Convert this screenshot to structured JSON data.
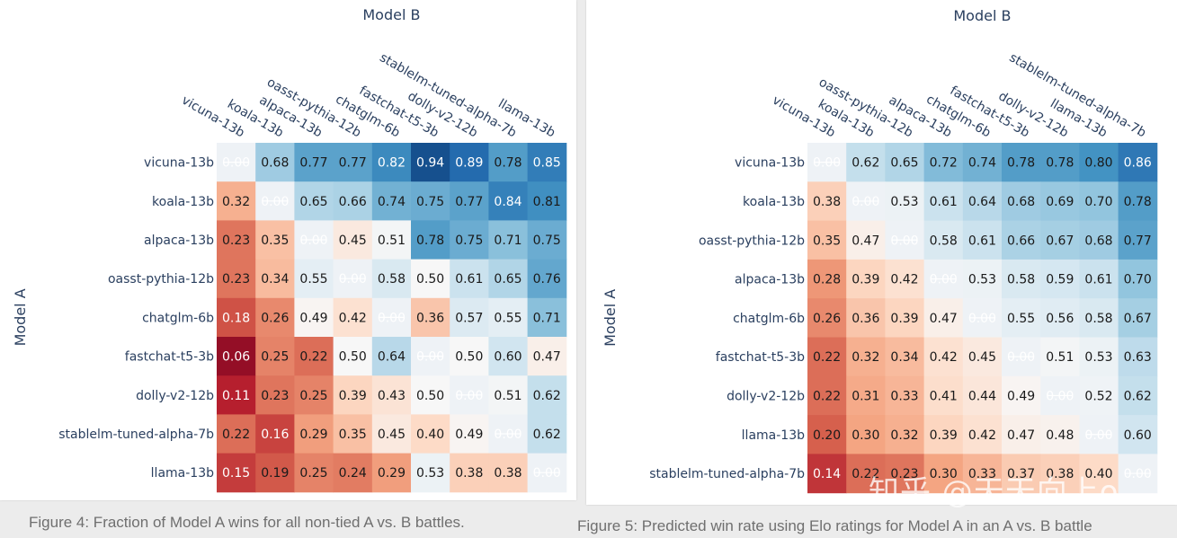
{
  "chart_data": [
    {
      "type": "heatmap",
      "title": "Model B",
      "xlabel": "Model B",
      "ylabel": "Model A",
      "x_categories": [
        "vicuna-13b",
        "koala-13b",
        "alpaca-13b",
        "oasst-pythia-12b",
        "chatglm-6b",
        "fastchat-t5-3b",
        "dolly-v2-12b",
        "stablelm-tuned-alpha-7b",
        "llama-13b"
      ],
      "y_categories": [
        "vicuna-13b",
        "koala-13b",
        "alpaca-13b",
        "oasst-pythia-12b",
        "chatglm-6b",
        "fastchat-t5-3b",
        "dolly-v2-12b",
        "stablelm-tuned-alpha-7b",
        "llama-13b"
      ],
      "values": [
        [
          0.0,
          0.68,
          0.77,
          0.77,
          0.82,
          0.94,
          0.89,
          0.78,
          0.85
        ],
        [
          0.32,
          0.0,
          0.65,
          0.66,
          0.74,
          0.75,
          0.77,
          0.84,
          0.81
        ],
        [
          0.23,
          0.35,
          0.0,
          0.45,
          0.51,
          0.78,
          0.75,
          0.71,
          0.75
        ],
        [
          0.23,
          0.34,
          0.55,
          0.0,
          0.58,
          0.5,
          0.61,
          0.65,
          0.76
        ],
        [
          0.18,
          0.26,
          0.49,
          0.42,
          0.0,
          0.36,
          0.57,
          0.55,
          0.71
        ],
        [
          0.06,
          0.25,
          0.22,
          0.5,
          0.64,
          0.0,
          0.5,
          0.6,
          0.47
        ],
        [
          0.11,
          0.23,
          0.25,
          0.39,
          0.43,
          0.5,
          0.0,
          0.51,
          0.62
        ],
        [
          0.22,
          0.16,
          0.29,
          0.35,
          0.45,
          0.4,
          0.49,
          0.0,
          0.62
        ],
        [
          0.15,
          0.19,
          0.25,
          0.24,
          0.29,
          0.53,
          0.38,
          0.38,
          0.0
        ]
      ],
      "value_format": "0.00",
      "colorscale": "RdBu",
      "caption": "Figure 4: Fraction of Model A wins for all non-tied A vs. B battles."
    },
    {
      "type": "heatmap",
      "title": "Model B",
      "xlabel": "Model B",
      "ylabel": "Model A",
      "x_categories": [
        "vicuna-13b",
        "koala-13b",
        "oasst-pythia-12b",
        "alpaca-13b",
        "chatglm-6b",
        "fastchat-t5-3b",
        "dolly-v2-12b",
        "llama-13b",
        "stablelm-tuned-alpha-7b"
      ],
      "y_categories": [
        "vicuna-13b",
        "koala-13b",
        "oasst-pythia-12b",
        "alpaca-13b",
        "chatglm-6b",
        "fastchat-t5-3b",
        "dolly-v2-12b",
        "llama-13b",
        "stablelm-tuned-alpha-7b"
      ],
      "values": [
        [
          0.0,
          0.62,
          0.65,
          0.72,
          0.74,
          0.78,
          0.78,
          0.8,
          0.86
        ],
        [
          0.38,
          0.0,
          0.53,
          0.61,
          0.64,
          0.68,
          0.69,
          0.7,
          0.78
        ],
        [
          0.35,
          0.47,
          0.0,
          0.58,
          0.61,
          0.66,
          0.67,
          0.68,
          0.77
        ],
        [
          0.28,
          0.39,
          0.42,
          0.0,
          0.53,
          0.58,
          0.59,
          0.61,
          0.7
        ],
        [
          0.26,
          0.36,
          0.39,
          0.47,
          0.0,
          0.55,
          0.56,
          0.58,
          0.67
        ],
        [
          0.22,
          0.32,
          0.34,
          0.42,
          0.45,
          0.0,
          0.51,
          0.53,
          0.63
        ],
        [
          0.22,
          0.31,
          0.33,
          0.41,
          0.44,
          0.49,
          0.0,
          0.52,
          0.62
        ],
        [
          0.2,
          0.3,
          0.32,
          0.39,
          0.42,
          0.47,
          0.48,
          0.0,
          0.6
        ],
        [
          0.14,
          0.22,
          0.23,
          0.3,
          0.33,
          0.37,
          0.38,
          0.4,
          0.0
        ]
      ],
      "value_format": "0.00",
      "colorscale": "RdBu",
      "caption": "Figure 5: Predicted win rate using Elo ratings for Model A in an A vs. B battle"
    }
  ],
  "watermark": "知乎 @天天向上o"
}
